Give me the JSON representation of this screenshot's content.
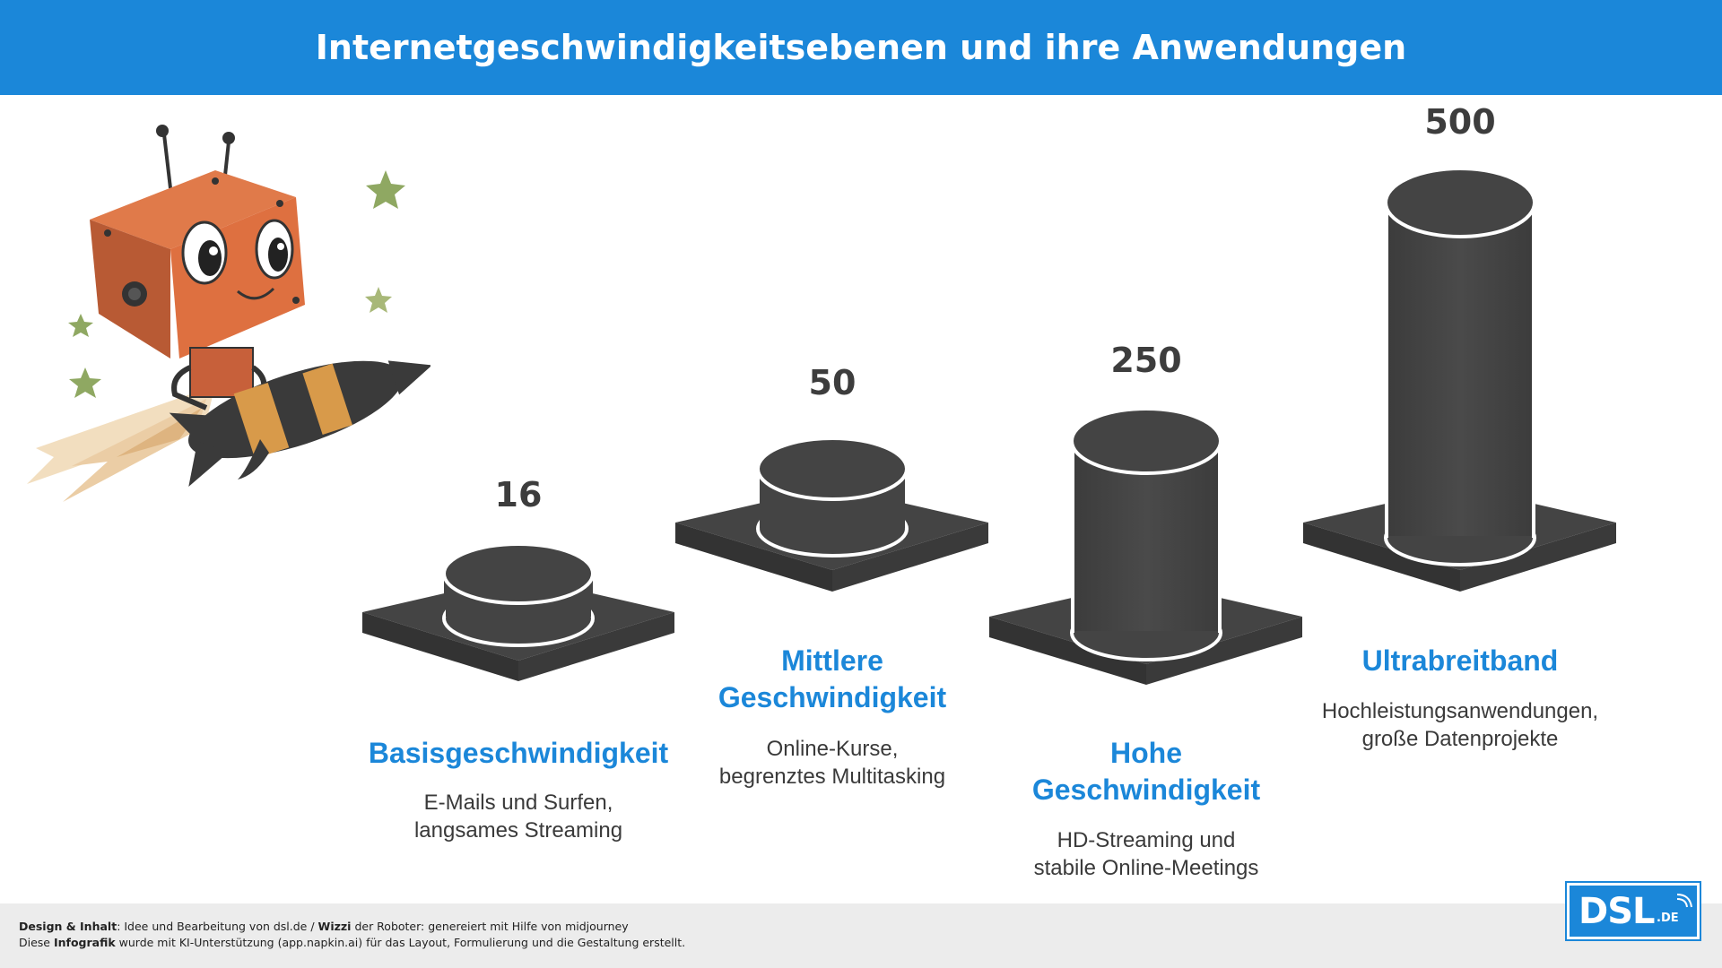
{
  "title": "Internetgeschwindigkeitsebenen und ihre Anwendungen",
  "tiers": [
    {
      "value": "16",
      "title_lines": [
        "Basisgeschwindigkeit"
      ],
      "desc_lines": [
        "E-Mails und Surfen,",
        "langsames Streaming"
      ]
    },
    {
      "value": "50",
      "title_lines": [
        "Mittlere",
        "Geschwindigkeit"
      ],
      "desc_lines": [
        "Online-Kurse,",
        "begrenztes Multitasking"
      ]
    },
    {
      "value": "250",
      "title_lines": [
        "Hohe",
        "Geschwindigkeit"
      ],
      "desc_lines": [
        "HD-Streaming und",
        "stabile Online-Meetings"
      ]
    },
    {
      "value": "500",
      "title_lines": [
        "Ultrabreitband"
      ],
      "desc_lines": [
        "Hochleistungsanwendungen,",
        "große Datenprojekte"
      ]
    }
  ],
  "footer": {
    "line1_bold1": "Design & Inhalt",
    "line1_text1": ": Idee und Bearbeitung von dsl.de / ",
    "line1_bold2": "Wizzi",
    "line1_text2": " der Roboter: genereiert mit Hilfe von midjourney",
    "line2_text1": "Diese ",
    "line2_bold1": "Infografik",
    "line2_text2": " wurde mit KI-Unterstützung (app.napkin.ai) für das Layout, Formulierung und die Gestaltung erstellt."
  },
  "logo": {
    "main": "DSL",
    "suffix": ".DE"
  },
  "colors": {
    "accent": "#1b87d9",
    "cylinder": "#444444",
    "robot": "#d9683a"
  }
}
